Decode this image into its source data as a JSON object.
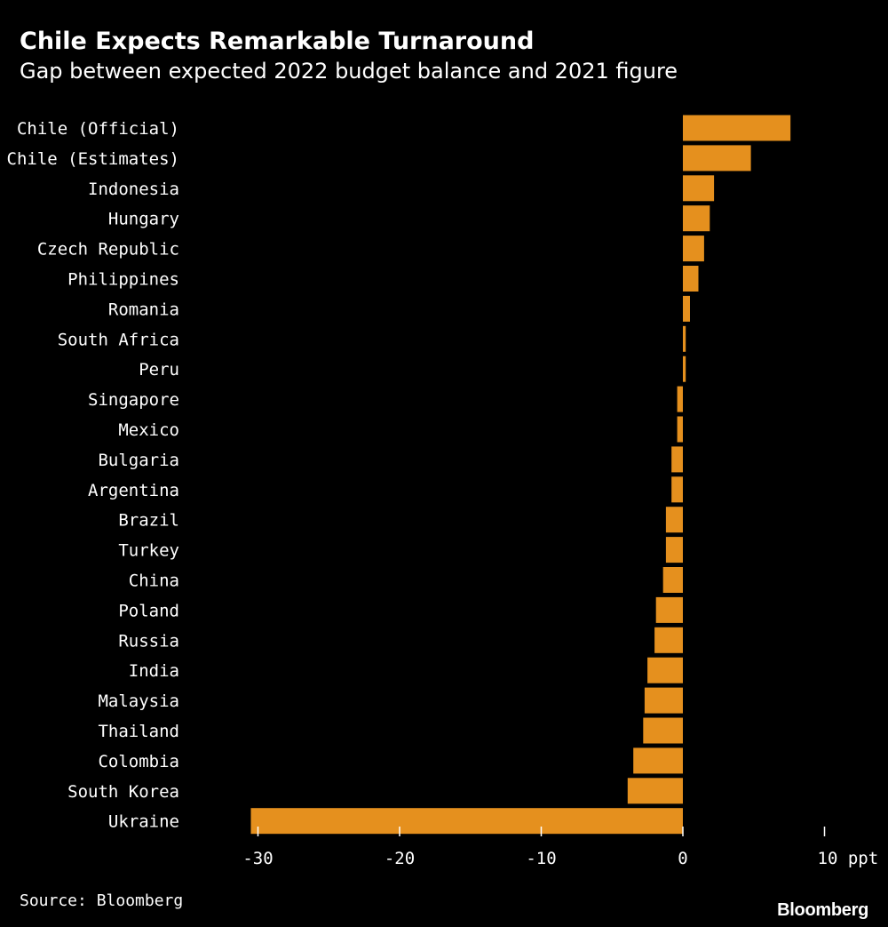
{
  "header": {
    "title": "Chile Expects Remarkable Turnaround",
    "subtitle": "Gap between expected 2022 budget balance and 2021 figure"
  },
  "footer": {
    "source": "Source: Bloomberg",
    "brand": "Bloomberg"
  },
  "colors": {
    "background": "#000000",
    "bar": "#e5901e",
    "text": "#ffffff"
  },
  "chart_data": {
    "type": "bar",
    "orientation": "horizontal",
    "title": "Chile Expects Remarkable Turnaround",
    "subtitle": "Gap between expected 2022 budget balance and 2021 figure",
    "xlabel": "ppt",
    "ylabel": "",
    "xlim": [
      -30.5,
      10
    ],
    "grid": false,
    "ticks": [
      {
        "value": -30,
        "label": "-30"
      },
      {
        "value": -20,
        "label": "-20"
      },
      {
        "value": -10,
        "label": "-10"
      },
      {
        "value": 0,
        "label": "0"
      },
      {
        "value": 10,
        "label": "10 ppt"
      }
    ],
    "categories": [
      "Chile (Official)",
      "Chile (Estimates)",
      "Indonesia",
      "Hungary",
      "Czech Republic",
      "Philippines",
      "Romania",
      "South Africa",
      "Peru",
      "Singapore",
      "Mexico",
      "Bulgaria",
      "Argentina",
      "Brazil",
      "Turkey",
      "China",
      "Poland",
      "Russia",
      "India",
      "Malaysia",
      "Thailand",
      "Colombia",
      "South Korea",
      "Ukraine"
    ],
    "values": [
      7.6,
      4.8,
      2.2,
      1.9,
      1.5,
      1.1,
      0.5,
      0.2,
      0.2,
      -0.4,
      -0.4,
      -0.8,
      -0.8,
      -1.2,
      -1.2,
      -1.4,
      -1.9,
      -2.0,
      -2.5,
      -2.7,
      -2.8,
      -3.5,
      -3.9,
      -30.5
    ]
  }
}
